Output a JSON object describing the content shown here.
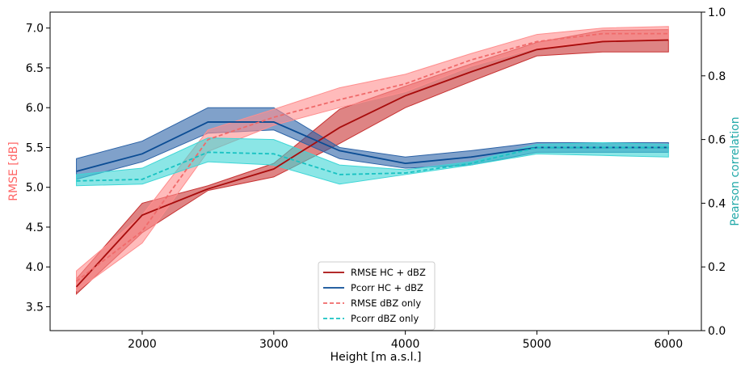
{
  "chart_data": {
    "type": "line",
    "title": "",
    "xlabel": "Height [m a.s.l.]",
    "ylabel_left": "RMSE [dB]",
    "ylabel_right": "Pearson correlation",
    "xlim": [
      1300,
      6250
    ],
    "ylim_left": [
      3.2,
      7.2
    ],
    "ylim_right": [
      0.0,
      1.0
    ],
    "x_ticks": [
      2000,
      3000,
      4000,
      5000,
      6000
    ],
    "y_ticks_left": [
      3.5,
      4.0,
      4.5,
      5.0,
      5.5,
      6.0,
      6.5,
      7.0
    ],
    "y_ticks_right": [
      0.0,
      0.2,
      0.4,
      0.6,
      0.8,
      1.0
    ],
    "x": [
      1500,
      2000,
      2500,
      3000,
      3500,
      4000,
      4500,
      5000,
      5500,
      6000
    ],
    "grid": false,
    "legend_position": "bottom-center",
    "colors": {
      "left_axis_label": "#ff6666",
      "right_axis_label": "#20a8a8"
    },
    "series": [
      {
        "name": "RMSE HC + dBZ",
        "axis": "left",
        "style": "solid",
        "color": "#a80c0c",
        "band_color": "#c83232",
        "values": [
          3.75,
          4.65,
          4.98,
          5.23,
          5.75,
          6.15,
          6.45,
          6.73,
          6.83,
          6.85
        ],
        "lower": [
          3.66,
          4.43,
          4.96,
          5.13,
          5.55,
          6.0,
          6.33,
          6.65,
          6.7,
          6.7
        ],
        "upper": [
          3.85,
          4.8,
          5.02,
          5.3,
          5.98,
          6.27,
          6.55,
          6.82,
          6.97,
          6.98
        ]
      },
      {
        "name": "Pcorr HC + dBZ",
        "axis": "right",
        "style": "solid",
        "color": "#0a4c94",
        "band_color": "#2b62a6",
        "values": [
          0.5,
          0.555,
          0.655,
          0.655,
          0.565,
          0.525,
          0.545,
          0.575,
          0.575,
          0.575
        ],
        "lower": [
          0.475,
          0.53,
          0.62,
          0.63,
          0.54,
          0.51,
          0.52,
          0.56,
          0.56,
          0.56
        ],
        "upper": [
          0.54,
          0.595,
          0.7,
          0.7,
          0.575,
          0.545,
          0.565,
          0.59,
          0.59,
          0.59
        ]
      },
      {
        "name": "RMSE dBZ only",
        "axis": "left",
        "style": "dashed",
        "color": "#f06a6a",
        "band_color": "#ff8e8e",
        "values": [
          3.82,
          4.45,
          5.6,
          5.88,
          6.1,
          6.3,
          6.6,
          6.83,
          6.93,
          6.93
        ],
        "lower": [
          3.7,
          4.3,
          5.45,
          5.78,
          6.0,
          6.2,
          6.52,
          6.75,
          6.84,
          6.85
        ],
        "upper": [
          3.95,
          4.65,
          5.72,
          5.98,
          6.25,
          6.42,
          6.68,
          6.92,
          7.0,
          7.02
        ]
      },
      {
        "name": "Pcorr dBZ only",
        "axis": "right",
        "style": "dashed",
        "color": "#18c2c2",
        "band_color": "#3ed6d6",
        "values": [
          0.47,
          0.475,
          0.56,
          0.555,
          0.49,
          0.495,
          0.525,
          0.575,
          0.575,
          0.575
        ],
        "lower": [
          0.455,
          0.46,
          0.53,
          0.52,
          0.46,
          0.49,
          0.52,
          0.555,
          0.55,
          0.545
        ],
        "upper": [
          0.49,
          0.51,
          0.605,
          0.6,
          0.52,
          0.505,
          0.53,
          0.585,
          0.59,
          0.585
        ]
      }
    ]
  }
}
